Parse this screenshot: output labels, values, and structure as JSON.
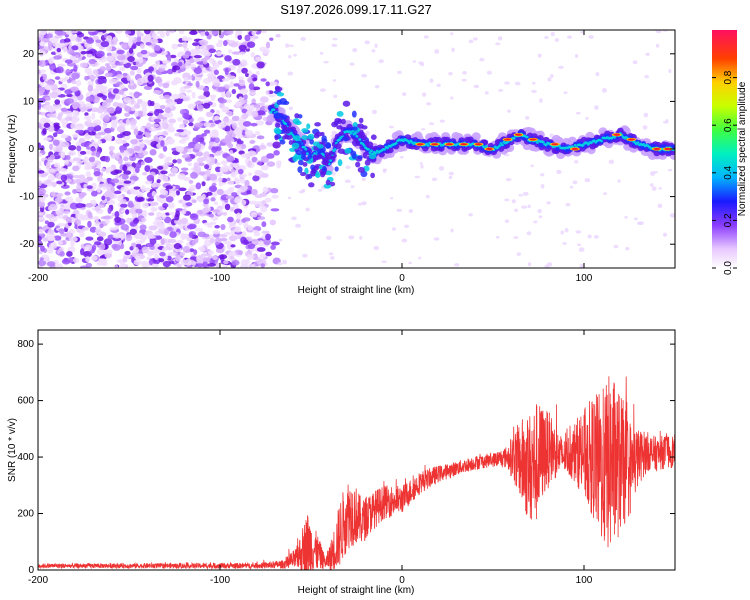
{
  "title": "S197.2026.099.17.11.G27",
  "chart_data": [
    {
      "type": "heatmap",
      "name": "spectrogram",
      "xlabel": "Height of straight line (km)",
      "ylabel": "Frequency (Hz)",
      "xlim": [
        -200,
        150
      ],
      "ylim": [
        -25,
        25
      ],
      "xticks": [
        -200,
        -100,
        0,
        100
      ],
      "yticks": [
        -20,
        -10,
        0,
        10,
        20
      ],
      "colorbar": {
        "label": "Normalized spectral amplitude",
        "range": [
          0,
          1
        ],
        "ticks": [
          0.0,
          0.2,
          0.4,
          0.6,
          0.8
        ],
        "tick_labels": [
          "0.0",
          "0.2",
          "0.4",
          "0.6",
          "0.8"
        ]
      },
      "ridge": {
        "description": "main frequency track",
        "points": [
          [
            -70,
            8
          ],
          [
            -62,
            4
          ],
          [
            -55,
            1
          ],
          [
            -50,
            -2
          ],
          [
            -45,
            0
          ],
          [
            -40,
            -3
          ],
          [
            -35,
            2
          ],
          [
            -30,
            4
          ],
          [
            -25,
            3
          ],
          [
            -20,
            0
          ],
          [
            -15,
            -1
          ],
          [
            -10,
            0
          ],
          [
            -5,
            1
          ],
          [
            0,
            2
          ],
          [
            10,
            1
          ],
          [
            20,
            1
          ],
          [
            30,
            1
          ],
          [
            40,
            1
          ],
          [
            50,
            0
          ],
          [
            60,
            2
          ],
          [
            65,
            3
          ],
          [
            70,
            2
          ],
          [
            80,
            1
          ],
          [
            90,
            0
          ],
          [
            100,
            1
          ],
          [
            110,
            2
          ],
          [
            120,
            3
          ],
          [
            130,
            1
          ],
          [
            140,
            0
          ],
          [
            150,
            0
          ]
        ]
      },
      "noise_region": [
        -200,
        -70
      ]
    },
    {
      "type": "line",
      "name": "snr",
      "xlabel": "Height of straight line (km)",
      "ylabel": "SNR (10 * v/v)",
      "xlim": [
        -200,
        150
      ],
      "ylim": [
        0,
        850
      ],
      "xticks": [
        -200,
        -100,
        0,
        100
      ],
      "yticks": [
        0,
        200,
        400,
        600,
        800
      ],
      "color": "#ee3333",
      "envelope": {
        "x": [
          -200,
          -80,
          -65,
          -58,
          -52,
          -46,
          -42,
          -38,
          -34,
          -30,
          -26,
          -22,
          -16,
          -10,
          0,
          10,
          20,
          30,
          40,
          50,
          58,
          62,
          66,
          70,
          74,
          78,
          82,
          86,
          90,
          96,
          100,
          105,
          110,
          115,
          120,
          125,
          130,
          135,
          140,
          145,
          150
        ],
        "mean": [
          15,
          15,
          20,
          40,
          90,
          60,
          25,
          60,
          130,
          200,
          200,
          170,
          210,
          240,
          250,
          310,
          340,
          360,
          380,
          390,
          400,
          400,
          380,
          360,
          380,
          420,
          430,
          410,
          400,
          420,
          410,
          400,
          360,
          380,
          380,
          360,
          400,
          420,
          410,
          420,
          420
        ],
        "spread": [
          8,
          10,
          15,
          40,
          120,
          60,
          20,
          70,
          120,
          130,
          110,
          80,
          70,
          60,
          50,
          40,
          30,
          25,
          25,
          25,
          40,
          100,
          160,
          200,
          220,
          160,
          120,
          80,
          60,
          120,
          160,
          220,
          280,
          330,
          250,
          180,
          100,
          70,
          60,
          60,
          60
        ]
      }
    }
  ]
}
